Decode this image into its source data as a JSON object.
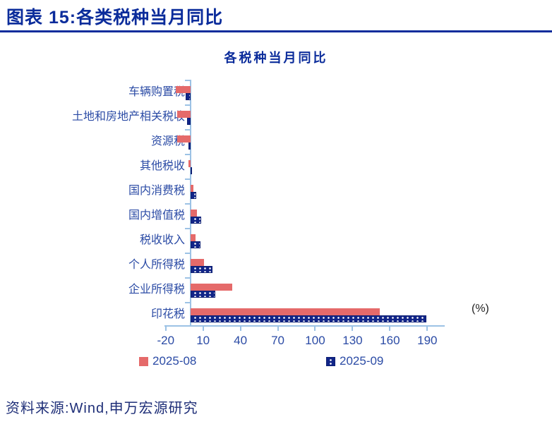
{
  "header": {
    "title": "图表 15:各类税种当月同比"
  },
  "chart_data": {
    "type": "bar",
    "orientation": "horizontal",
    "title": "各税种当月同比",
    "unit_label": "(%)",
    "categories": [
      "车辆购置税",
      "土地和房地产相关税收",
      "资源税",
      "其他税收",
      "国内消费税",
      "国内增值税",
      "税收收入",
      "个人所得税",
      "企业所得税",
      "印花税"
    ],
    "series": [
      {
        "name": "2025-08",
        "color": "#E56A6A",
        "values": [
          -12,
          -11,
          -11,
          -1.5,
          2,
          5,
          4,
          10.5,
          33.5,
          152
        ]
      },
      {
        "name": "2025-09",
        "color": "#112588",
        "values": [
          -4,
          -3,
          -2,
          1,
          4.5,
          8.5,
          8,
          17.5,
          20,
          189
        ]
      }
    ],
    "x_ticks": [
      -20,
      10,
      40,
      70,
      100,
      130,
      160,
      190
    ],
    "xlim": [
      -21,
      204
    ],
    "grid": false,
    "legend_position": "bottom"
  },
  "colors": {
    "accent_navy": "#0B2C9B",
    "axis_blue": "#9CC2E5",
    "label_blue": "#2B4BA5"
  },
  "footer": {
    "source": "资料来源:Wind,申万宏源研究"
  }
}
